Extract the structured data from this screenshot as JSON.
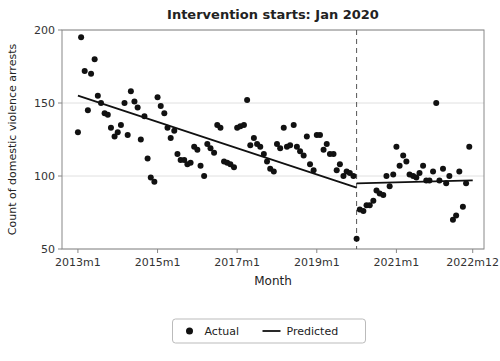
{
  "chart_data": {
    "type": "scatter",
    "title": "Intervention starts: Jan 2020",
    "x_label": "Month",
    "y_label": "Count of domestic violence arrests",
    "xlim": [
      2012.6,
      2023.2
    ],
    "ylim": [
      50,
      200
    ],
    "yticks": [
      50,
      100,
      150,
      200
    ],
    "xticks": [
      {
        "value": 2013.0,
        "label": "2013m1"
      },
      {
        "value": 2015.0,
        "label": "2015m1"
      },
      {
        "value": 2017.0,
        "label": "2017m1"
      },
      {
        "value": 2019.0,
        "label": "2019m1"
      },
      {
        "value": 2021.0,
        "label": "2021m1"
      },
      {
        "value": 2022.917,
        "label": "2022m12"
      }
    ],
    "grid": true,
    "legend": "bottom",
    "intervention_x": 2020.0,
    "series": [
      {
        "name": "Actual",
        "type": "scatter",
        "marker": "circle",
        "color": "#111111",
        "x": [
          2013.0,
          2013.08,
          2013.17,
          2013.25,
          2013.33,
          2013.42,
          2013.5,
          2013.58,
          2013.67,
          2013.75,
          2013.83,
          2013.92,
          2014.0,
          2014.08,
          2014.17,
          2014.25,
          2014.33,
          2014.42,
          2014.5,
          2014.58,
          2014.67,
          2014.75,
          2014.83,
          2014.92,
          2015.0,
          2015.08,
          2015.17,
          2015.25,
          2015.33,
          2015.42,
          2015.5,
          2015.58,
          2015.67,
          2015.75,
          2015.83,
          2015.92,
          2016.0,
          2016.08,
          2016.17,
          2016.25,
          2016.33,
          2016.42,
          2016.5,
          2016.58,
          2016.67,
          2016.75,
          2016.83,
          2016.92,
          2017.0,
          2017.08,
          2017.17,
          2017.25,
          2017.33,
          2017.42,
          2017.5,
          2017.58,
          2017.67,
          2017.75,
          2017.83,
          2017.92,
          2018.0,
          2018.08,
          2018.17,
          2018.25,
          2018.33,
          2018.42,
          2018.5,
          2018.58,
          2018.67,
          2018.75,
          2018.83,
          2018.92,
          2019.0,
          2019.08,
          2019.17,
          2019.25,
          2019.33,
          2019.42,
          2019.5,
          2019.58,
          2019.67,
          2019.75,
          2019.83,
          2019.92,
          2020.0,
          2020.08,
          2020.17,
          2020.25,
          2020.33,
          2020.42,
          2020.5,
          2020.58,
          2020.67,
          2020.75,
          2020.83,
          2020.92,
          2021.0,
          2021.08,
          2021.17,
          2021.25,
          2021.33,
          2021.42,
          2021.5,
          2021.58,
          2021.67,
          2021.75,
          2021.83,
          2021.92,
          2022.0,
          2022.08,
          2022.17,
          2022.25,
          2022.33,
          2022.42,
          2022.5,
          2022.58,
          2022.67,
          2022.75,
          2022.83
        ],
        "values": [
          130,
          195,
          172,
          145,
          170,
          180,
          155,
          150,
          143,
          142,
          133,
          127,
          130,
          135,
          150,
          128,
          158,
          151,
          147,
          125,
          141,
          112,
          99,
          96,
          154,
          148,
          143,
          133,
          126,
          131,
          115,
          111,
          111,
          108,
          109,
          120,
          118,
          107,
          100,
          122,
          119,
          116,
          135,
          133,
          110,
          109,
          108,
          106,
          133,
          134,
          135,
          152,
          121,
          126,
          122,
          120,
          115,
          110,
          105,
          103,
          122,
          119,
          133,
          120,
          121,
          135,
          120,
          117,
          114,
          127,
          108,
          104,
          128,
          128,
          118,
          122,
          115,
          115,
          104,
          108,
          100,
          103,
          102,
          100,
          57,
          77,
          76,
          80,
          80,
          83,
          90,
          88,
          87,
          100,
          93,
          101,
          120,
          107,
          114,
          110,
          101,
          100,
          99,
          102,
          107,
          97,
          97,
          103,
          150,
          97,
          105,
          95,
          100,
          70,
          73,
          103,
          79,
          95,
          120
        ]
      },
      {
        "name": "Predicted",
        "type": "line",
        "line_style": "solid",
        "color": "#111111",
        "x": [
          2013.0,
          2020.0,
          null,
          2020.0,
          2022.917
        ],
        "values": [
          155,
          92,
          null,
          95,
          97
        ]
      }
    ]
  }
}
